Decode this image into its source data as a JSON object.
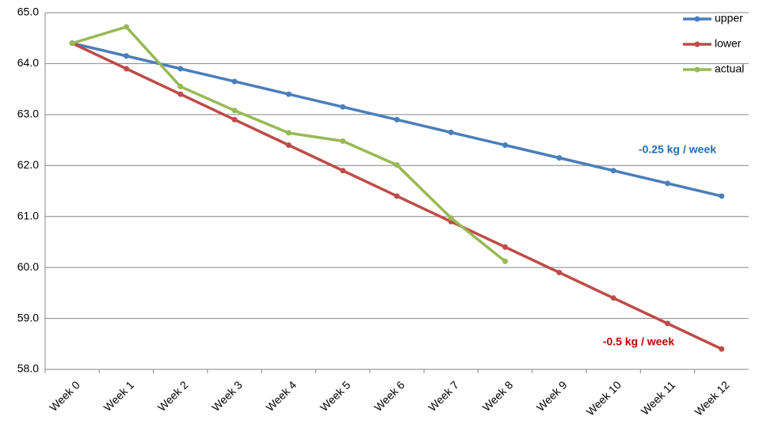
{
  "chart_data": {
    "type": "line",
    "categories": [
      "Week 0",
      "Week 1",
      "Week 2",
      "Week 3",
      "Week 4",
      "Week 5",
      "Week 6",
      "Week 7",
      "Week 8",
      "Week 9",
      "Week 10",
      "Week 11",
      "Week 12"
    ],
    "series": [
      {
        "name": "upper",
        "color": "#4a7ebb",
        "values": [
          64.4,
          64.15,
          63.9,
          63.65,
          63.4,
          63.15,
          62.9,
          62.65,
          62.4,
          62.15,
          61.9,
          61.65,
          61.4
        ]
      },
      {
        "name": "lower",
        "color": "#be4b48",
        "values": [
          64.4,
          63.9,
          63.4,
          62.9,
          62.4,
          61.9,
          61.4,
          60.9,
          60.4,
          59.9,
          59.4,
          58.9,
          58.4
        ]
      },
      {
        "name": "actual",
        "color": "#98b954",
        "values": [
          64.4,
          64.72,
          63.55,
          63.08,
          62.64,
          62.48,
          62.01,
          60.97,
          60.12,
          null,
          null,
          null,
          null
        ]
      }
    ],
    "annotations": [
      {
        "text": "-0.25 kg / week",
        "color": "#1f6fb5"
      },
      {
        "text": "-0.5 kg / week",
        "color": "#c00000"
      }
    ],
    "ylim": [
      58,
      65
    ],
    "yticks": [
      {
        "value": 58,
        "label": "58.0"
      },
      {
        "value": 59,
        "label": "59.0"
      },
      {
        "value": 60,
        "label": "60.0"
      },
      {
        "value": 61,
        "label": "61.0"
      },
      {
        "value": 62,
        "label": "62.0"
      },
      {
        "value": 63,
        "label": "63.0"
      },
      {
        "value": 64,
        "label": "64.0"
      },
      {
        "value": 65,
        "label": "65.0"
      }
    ],
    "grid": true,
    "legend": "top-right"
  }
}
